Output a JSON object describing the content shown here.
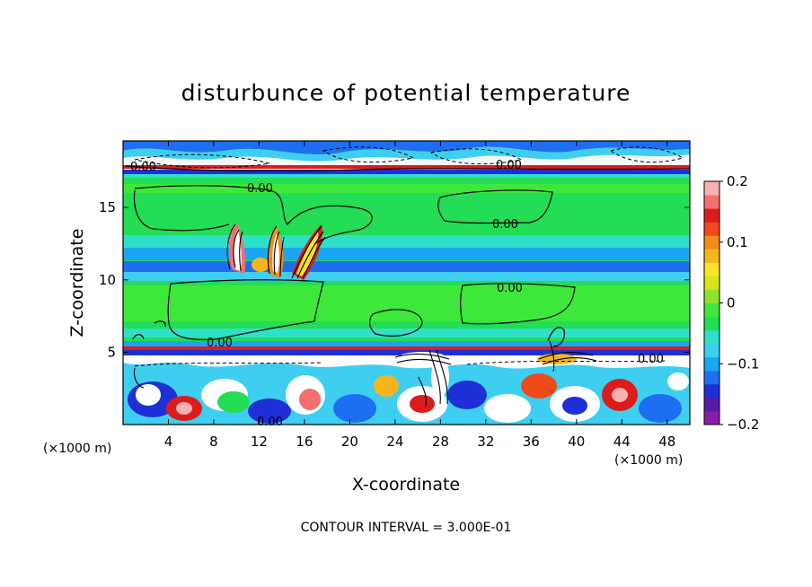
{
  "chart_data": {
    "type": "heatmap",
    "title": "disturbunce of potential temperature",
    "xlabel": "X-coordinate",
    "ylabel": "Z-coordinate",
    "x_unit": "(×1000 m)",
    "y_unit": "(×1000 m)",
    "xlim": [
      0,
      50
    ],
    "ylim": [
      0,
      19.6
    ],
    "x_ticks": [
      4,
      8,
      12,
      16,
      20,
      24,
      28,
      32,
      36,
      40,
      44,
      48
    ],
    "y_ticks": [
      5,
      10,
      15
    ],
    "colorbar": {
      "range": [
        -0.2,
        0.2
      ],
      "ticks": [
        0.2,
        0.1,
        0,
        -0.1,
        -0.2
      ],
      "tick_labels": [
        "0.2",
        "0.1",
        "0",
        "−0.1",
        "−0.2"
      ],
      "colors": [
        "#8b1ea8",
        "#5a1aa8",
        "#1f2fd6",
        "#1e6ff0",
        "#1aa6f2",
        "#3ecff0",
        "#2fe0c8",
        "#22dd55",
        "#3ee83a",
        "#8ee22a",
        "#d6e41c",
        "#f6e626",
        "#f5b51e",
        "#f58a1a",
        "#f04a18",
        "#dc1c1c",
        "#f47070",
        "#f8b0b0"
      ]
    },
    "contour_label": "0.00",
    "contour_interval": "CONTOUR INTERVAL = 3.000E-01"
  }
}
